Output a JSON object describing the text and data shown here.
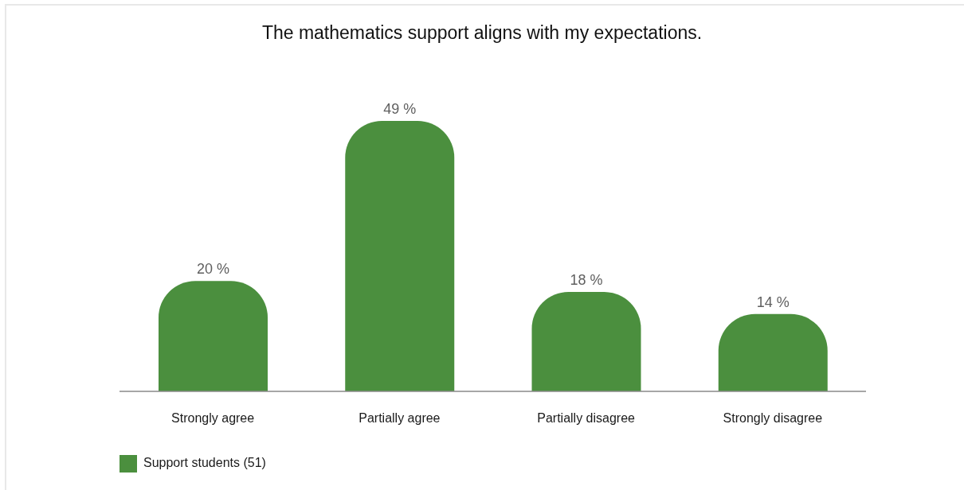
{
  "chart_data": {
    "type": "bar",
    "title": "The mathematics support aligns with my expectations.",
    "categories": [
      "Strongly agree",
      "Partially agree",
      "Partially disagree",
      "Strongly disagree"
    ],
    "series": [
      {
        "name": "Support students (51)",
        "color": "#4b8f3e",
        "values": [
          20,
          49,
          18,
          14
        ],
        "value_labels": [
          "20 %",
          "49 %",
          "18 %",
          "14 %"
        ]
      }
    ],
    "legend": "bottom left"
  }
}
